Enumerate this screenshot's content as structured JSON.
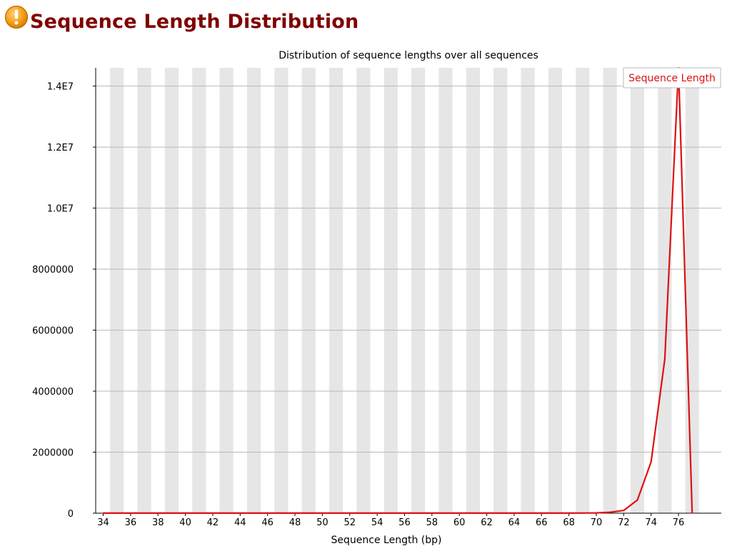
{
  "header": {
    "title": "Sequence Length Distribution",
    "status_icon": "warning-icon",
    "status_color": "#F7A11A"
  },
  "chart_data": {
    "type": "line",
    "title": "Distribution of sequence lengths over all sequences",
    "xlabel": "Sequence Length (bp)",
    "ylabel": "",
    "x": [
      34,
      35,
      36,
      37,
      38,
      39,
      40,
      41,
      42,
      43,
      44,
      45,
      46,
      47,
      48,
      49,
      50,
      51,
      52,
      53,
      54,
      55,
      56,
      57,
      58,
      59,
      60,
      61,
      62,
      63,
      64,
      65,
      66,
      67,
      68,
      69,
      70,
      71,
      72,
      73,
      74,
      75,
      76,
      77
    ],
    "x_tick_labels": [
      "34",
      "36",
      "38",
      "40",
      "42",
      "44",
      "46",
      "48",
      "50",
      "52",
      "54",
      "56",
      "58",
      "60",
      "62",
      "64",
      "66",
      "68",
      "70",
      "72",
      "74",
      "76"
    ],
    "ylim": [
      0,
      14600000
    ],
    "y_ticks": [
      0,
      2000000,
      4000000,
      6000000,
      8000000,
      10000000,
      12000000,
      14000000
    ],
    "y_tick_labels": [
      "0",
      "2000000",
      "4000000",
      "6000000",
      "8000000",
      "1.0E7",
      "1.2E7",
      "1.4E7"
    ],
    "series": [
      {
        "name": "Sequence Length",
        "color": "#DD1111",
        "values": [
          2000,
          2000,
          2000,
          2000,
          2000,
          2000,
          2000,
          2000,
          2000,
          2000,
          2000,
          2000,
          2000,
          2000,
          2000,
          2000,
          2000,
          2000,
          2000,
          2000,
          2000,
          2000,
          2000,
          2000,
          2000,
          2000,
          2000,
          2000,
          2000,
          2000,
          2000,
          2000,
          2000,
          2000,
          2000,
          5000,
          10000,
          30000,
          90000,
          430000,
          1680000,
          5050000,
          14600000,
          0
        ]
      }
    ],
    "legend": "top-right",
    "grid": true,
    "background_bands": true
  }
}
